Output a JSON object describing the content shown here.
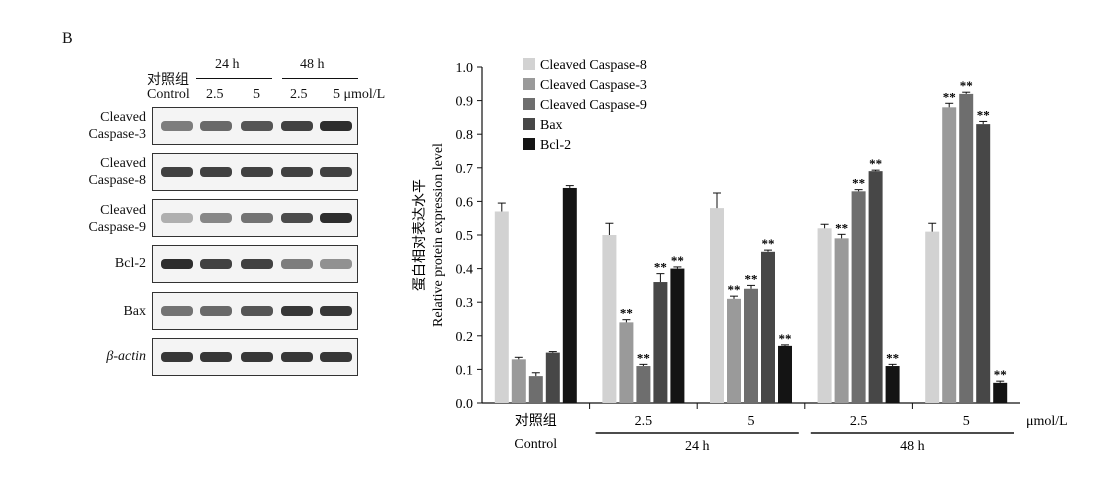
{
  "panel_label": "B",
  "blot": {
    "group_headers": [
      {
        "label": "24 h"
      },
      {
        "label": "48 h"
      }
    ],
    "lane_header": {
      "control_cn": "对照组",
      "control_en": "Control",
      "doses": [
        "2.5",
        "5",
        "2.5",
        "5 μmol/L"
      ]
    },
    "rows": [
      {
        "line1": "Cleaved",
        "line2": "Caspase-3",
        "intensities": [
          0.55,
          0.65,
          0.75,
          0.85,
          0.95
        ]
      },
      {
        "line1": "Cleaved",
        "line2": "Caspase-8",
        "intensities": [
          0.85,
          0.85,
          0.85,
          0.85,
          0.85
        ]
      },
      {
        "line1": "Cleaved",
        "line2": "Caspase-9",
        "intensities": [
          0.3,
          0.5,
          0.6,
          0.8,
          0.95
        ]
      },
      {
        "line1": "Bcl-2",
        "line2": "",
        "intensities": [
          0.95,
          0.85,
          0.85,
          0.55,
          0.45
        ]
      },
      {
        "line1": "Bax",
        "line2": "",
        "intensities": [
          0.6,
          0.65,
          0.75,
          0.9,
          0.9
        ]
      },
      {
        "line1": "β-actin",
        "line2": "",
        "italic_prefix": true,
        "intensities": [
          0.9,
          0.9,
          0.9,
          0.9,
          0.9
        ]
      }
    ]
  },
  "chart_data": {
    "type": "bar",
    "categories": [
      "对照组",
      "2.5",
      "5",
      "2.5",
      "5"
    ],
    "category_sublabel": "Control",
    "group_labels": [
      {
        "label": "24 h",
        "spans": [
          1,
          2
        ]
      },
      {
        "label": "48 h",
        "spans": [
          3,
          4
        ]
      }
    ],
    "unit_label": "μmol/L",
    "ylabel_cn": "蛋白相对表达水平",
    "ylabel_en": "Relative protein expression level",
    "ylim": [
      0,
      1.0
    ],
    "yticks": [
      "0.0",
      "0.1",
      "0.2",
      "0.3",
      "0.4",
      "0.5",
      "0.6",
      "0.7",
      "0.8",
      "0.9",
      "1.0"
    ],
    "legend_position": "top-left",
    "significance_mark": "**",
    "series": [
      {
        "name": "Cleaved Caspase-8",
        "color": "#d2d2d2",
        "values": [
          0.57,
          0.5,
          0.58,
          0.52,
          0.51
        ],
        "errors": [
          0.025,
          0.035,
          0.045,
          0.012,
          0.025
        ],
        "sig": [
          false,
          false,
          false,
          false,
          false
        ]
      },
      {
        "name": "Cleaved Caspase-3",
        "color": "#9a9a9a",
        "values": [
          0.13,
          0.24,
          0.31,
          0.49,
          0.88
        ],
        "errors": [
          0.006,
          0.008,
          0.008,
          0.012,
          0.012
        ],
        "sig": [
          false,
          true,
          true,
          true,
          true
        ]
      },
      {
        "name": "Cleaved Caspase-9",
        "color": "#6e6e6e",
        "values": [
          0.08,
          0.11,
          0.34,
          0.63,
          0.92
        ],
        "errors": [
          0.01,
          0.005,
          0.01,
          0.005,
          0.005
        ],
        "sig": [
          false,
          true,
          true,
          true,
          true
        ]
      },
      {
        "name": "Bax",
        "color": "#474747",
        "values": [
          0.15,
          0.36,
          0.45,
          0.69,
          0.83
        ],
        "errors": [
          0.003,
          0.025,
          0.005,
          0.003,
          0.008
        ],
        "sig": [
          false,
          true,
          true,
          true,
          true
        ]
      },
      {
        "name": "Bcl-2",
        "color": "#141414",
        "values": [
          0.64,
          0.4,
          0.17,
          0.11,
          0.06
        ],
        "errors": [
          0.007,
          0.005,
          0.003,
          0.005,
          0.005
        ],
        "sig": [
          false,
          true,
          true,
          true,
          true
        ]
      }
    ]
  }
}
